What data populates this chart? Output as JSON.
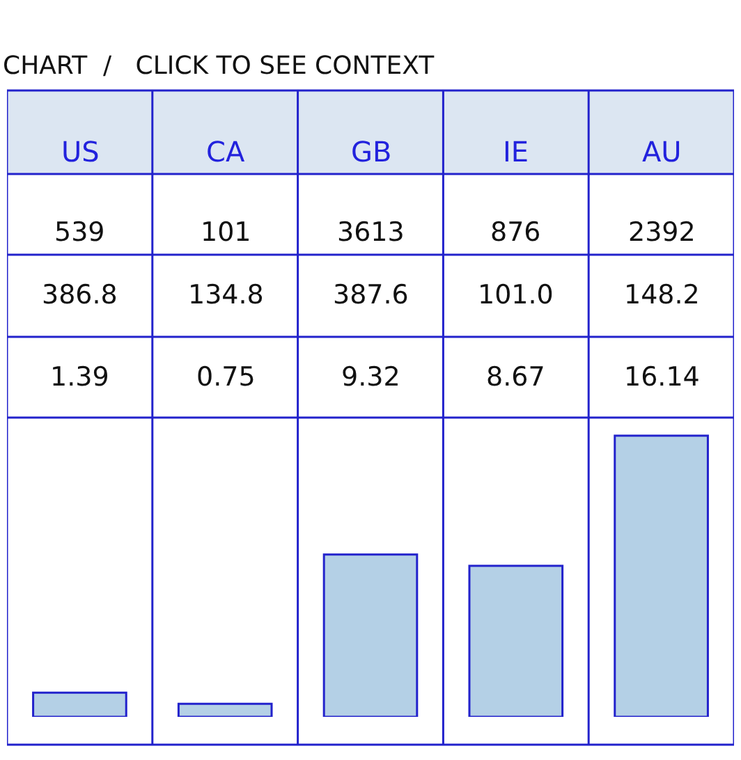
{
  "chart_data": {
    "type": "bar",
    "title": "CHART  /   CLICK TO SEE CONTEXT",
    "categories": [
      "US",
      "CA",
      "GB",
      "IE",
      "AU"
    ],
    "values": [
      1.39,
      0.75,
      9.32,
      8.67,
      16.14
    ],
    "color": "#b4d0e6",
    "data_labels": true,
    "annotations": [
      "539",
      "101",
      "3613",
      "876",
      "2392",
      "386.8",
      "134.8",
      "387.6",
      "101.0",
      "148.2"
    ]
  }
}
